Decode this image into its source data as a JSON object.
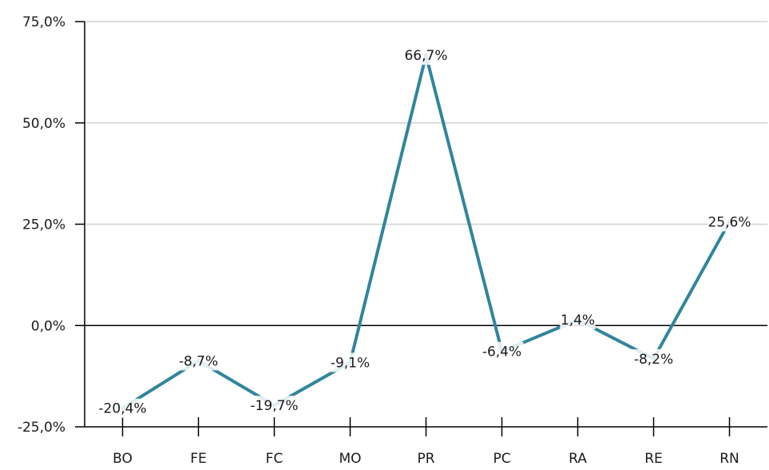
{
  "chart_data": {
    "type": "line",
    "categories": [
      "BO",
      "FE",
      "FC",
      "MO",
      "PR",
      "PC",
      "RA",
      "RE",
      "RN"
    ],
    "series": [
      {
        "values": [
          -20.4,
          -8.7,
          -19.7,
          -9.1,
          66.7,
          -6.4,
          1.4,
          -8.2,
          25.6
        ],
        "labels": [
          "-20,4%",
          "-8,7%",
          "-19,7%",
          "-9,1%",
          "66,7%",
          "-6,4%",
          "1,4%",
          "-8,2%",
          "25,6%"
        ],
        "color": "#31859c"
      }
    ],
    "ylim": [
      -25,
      75
    ],
    "yticks": [
      -25,
      0,
      25,
      50,
      75
    ],
    "ytick_labels": [
      "-25,0%",
      "0,0%",
      "25,0%",
      "50,0%",
      "75,0%"
    ],
    "grid": true,
    "legend": "none",
    "gridline_color": "#d0d0d0",
    "axis_color": "#000000"
  }
}
